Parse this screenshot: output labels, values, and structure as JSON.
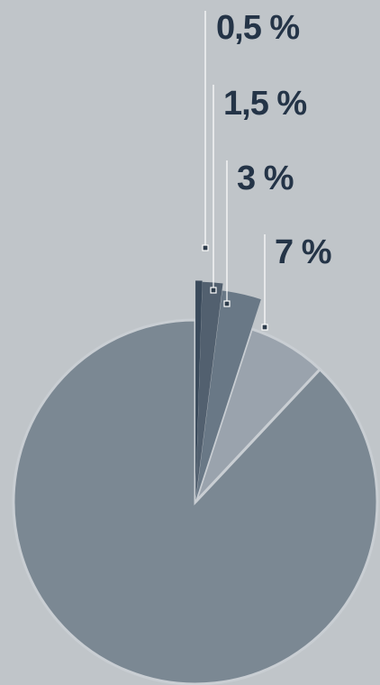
{
  "chart_data": {
    "type": "pie",
    "slices": [
      {
        "label": "0,5 %",
        "value": 0.5,
        "color": "#3a4a5b"
      },
      {
        "label": "1,5 %",
        "value": 1.5,
        "color": "#52606f"
      },
      {
        "label": "3 %",
        "value": 3,
        "color": "#697886"
      },
      {
        "label": "7 %",
        "value": 7,
        "color": "#9aa3ad"
      },
      {
        "label": "",
        "value": 88,
        "color": "#7b8893"
      }
    ],
    "legend": "none",
    "grid": false
  }
}
